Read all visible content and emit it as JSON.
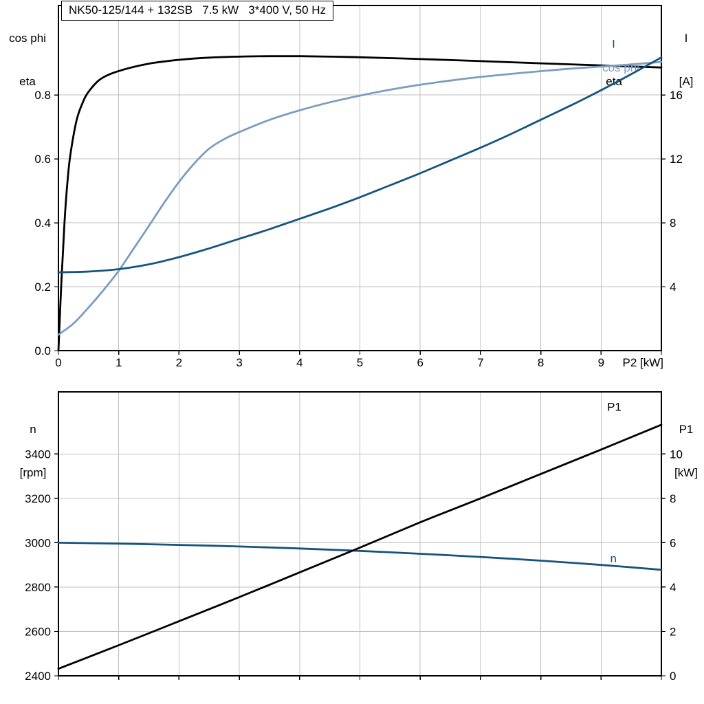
{
  "style": {
    "background": "#ffffff",
    "grid_color": "#bfbfbf",
    "axis_color": "#000000",
    "black_curve": "#000000",
    "dark_blue_curve": "#14557e",
    "light_blue_curve": "#7b9dbf"
  },
  "chart_data": [
    {
      "type": "line",
      "title": "NK50-125/144 + 132SB   7.5 kW   3*400 V, 50 Hz",
      "grid": true,
      "legend_position": "inline-right",
      "x_axis": {
        "min": 0,
        "max": 10,
        "label": "P2 [kW]",
        "grid_lines": [
          1,
          2,
          3,
          4,
          5,
          6,
          7,
          8,
          9
        ],
        "ticks": [
          {
            "v": 0,
            "label": "0"
          },
          {
            "v": 1,
            "label": "1"
          },
          {
            "v": 2,
            "label": "2"
          },
          {
            "v": 3,
            "label": "3"
          },
          {
            "v": 4,
            "label": "4"
          },
          {
            "v": 5,
            "label": "5"
          },
          {
            "v": 6,
            "label": "6"
          },
          {
            "v": 7,
            "label": "7"
          },
          {
            "v": 8,
            "label": "8"
          },
          {
            "v": 9,
            "label": "9"
          },
          {
            "v": 10,
            "label": ""
          }
        ]
      },
      "y_left": {
        "min": 0,
        "max": 1.08,
        "title_lines": [
          "cos phi",
          "eta"
        ],
        "ticks": [
          {
            "v": 0,
            "label": "0.0"
          },
          {
            "v": 0.2,
            "label": "0.2"
          },
          {
            "v": 0.4,
            "label": "0.4"
          },
          {
            "v": 0.6,
            "label": "0.6"
          },
          {
            "v": 0.8,
            "label": "0.8"
          }
        ]
      },
      "y_right": {
        "min": 0,
        "max": 21.6,
        "title_lines": [
          "I",
          "[A]"
        ],
        "ticks": [
          {
            "v": 4,
            "label": "4"
          },
          {
            "v": 8,
            "label": "8"
          },
          {
            "v": 12,
            "label": "12"
          },
          {
            "v": 16,
            "label": "16"
          }
        ]
      },
      "series": [
        {
          "name": "eta",
          "axis": "left",
          "color": "#000000",
          "width": 2.8,
          "label": {
            "text": "eta",
            "x": 9.08,
            "y": 0.8305
          },
          "points": [
            [
              0,
              0
            ],
            [
              0.05,
              0.22
            ],
            [
              0.1,
              0.4
            ],
            [
              0.15,
              0.53
            ],
            [
              0.2,
              0.615
            ],
            [
              0.3,
              0.72
            ],
            [
              0.4,
              0.775
            ],
            [
              0.5,
              0.81
            ],
            [
              0.7,
              0.85
            ],
            [
              1,
              0.875
            ],
            [
              1.5,
              0.898
            ],
            [
              2,
              0.91
            ],
            [
              2.5,
              0.917
            ],
            [
              3,
              0.92
            ],
            [
              3.5,
              0.9215
            ],
            [
              4,
              0.9215
            ],
            [
              4.5,
              0.92
            ],
            [
              5,
              0.918
            ],
            [
              6,
              0.9125
            ],
            [
              7,
              0.906
            ],
            [
              8,
              0.899
            ],
            [
              9,
              0.8925
            ],
            [
              10,
              0.886
            ]
          ]
        },
        {
          "name": "cos phi",
          "axis": "left",
          "color": "#7b9dbf",
          "width": 2.8,
          "label": {
            "text": "cos phi",
            "x": 9.02,
            "y": 0.8735
          },
          "points": [
            [
              0,
              0.05
            ],
            [
              0.25,
              0.085
            ],
            [
              0.5,
              0.135
            ],
            [
              0.75,
              0.19
            ],
            [
              1,
              0.25
            ],
            [
              1.25,
              0.32
            ],
            [
              1.5,
              0.39
            ],
            [
              1.75,
              0.462
            ],
            [
              2,
              0.528
            ],
            [
              2.25,
              0.585
            ],
            [
              2.5,
              0.632
            ],
            [
              2.75,
              0.662
            ],
            [
              3,
              0.684
            ],
            [
              3.5,
              0.722
            ],
            [
              4,
              0.752
            ],
            [
              4.5,
              0.777
            ],
            [
              5,
              0.798
            ],
            [
              5.5,
              0.8165
            ],
            [
              6,
              0.832
            ],
            [
              6.5,
              0.845
            ],
            [
              7,
              0.8565
            ],
            [
              7.5,
              0.866
            ],
            [
              8,
              0.8745
            ],
            [
              8.5,
              0.8825
            ],
            [
              9,
              0.889
            ],
            [
              9.5,
              0.8955
            ],
            [
              10,
              0.9035
            ]
          ]
        },
        {
          "name": "I",
          "axis": "right",
          "color": "#14557e",
          "width": 2.8,
          "label": {
            "text": "I",
            "x": 9.18,
            "y": 18.95
          },
          "points": [
            [
              0,
              4.9
            ],
            [
              0.5,
              4.95
            ],
            [
              1,
              5.1
            ],
            [
              1.5,
              5.4
            ],
            [
              2,
              5.85
            ],
            [
              2.5,
              6.4
            ],
            [
              3,
              7.0
            ],
            [
              3.5,
              7.6
            ],
            [
              4,
              8.25
            ],
            [
              4.5,
              8.9
            ],
            [
              5,
              9.6
            ],
            [
              5.5,
              10.35
            ],
            [
              6,
              11.1
            ],
            [
              6.5,
              11.9
            ],
            [
              7,
              12.7
            ],
            [
              7.5,
              13.55
            ],
            [
              8,
              14.45
            ],
            [
              8.5,
              15.35
            ],
            [
              9,
              16.3
            ],
            [
              9.5,
              17.3
            ],
            [
              10,
              18.35
            ]
          ]
        }
      ]
    },
    {
      "type": "line",
      "grid": true,
      "x_axis": {
        "min": 0,
        "max": 10,
        "label": "",
        "grid_lines": [
          1,
          2,
          3,
          4,
          5,
          6,
          7,
          8,
          9
        ],
        "ticks": [
          {
            "v": 0,
            "label": ""
          },
          {
            "v": 1,
            "label": ""
          },
          {
            "v": 2,
            "label": ""
          },
          {
            "v": 3,
            "label": ""
          },
          {
            "v": 4,
            "label": ""
          },
          {
            "v": 5,
            "label": ""
          },
          {
            "v": 6,
            "label": ""
          },
          {
            "v": 7,
            "label": ""
          },
          {
            "v": 8,
            "label": ""
          },
          {
            "v": 9,
            "label": ""
          },
          {
            "v": 10,
            "label": ""
          }
        ]
      },
      "y_left": {
        "min": 2400,
        "max": 3680,
        "title_lines": [
          "n",
          "[rpm]"
        ],
        "ticks": [
          {
            "v": 2400,
            "label": "2400"
          },
          {
            "v": 2600,
            "label": "2600"
          },
          {
            "v": 2800,
            "label": "2800"
          },
          {
            "v": 3000,
            "label": "3000"
          },
          {
            "v": 3200,
            "label": "3200"
          },
          {
            "v": 3400,
            "label": "3400"
          }
        ]
      },
      "y_right": {
        "min": 0,
        "max": 12.8,
        "title_lines": [
          "P1",
          "[kW]"
        ],
        "ticks": [
          {
            "v": 0,
            "label": "0"
          },
          {
            "v": 2,
            "label": "2"
          },
          {
            "v": 4,
            "label": "4"
          },
          {
            "v": 6,
            "label": "6"
          },
          {
            "v": 8,
            "label": "8"
          },
          {
            "v": 10,
            "label": "10"
          }
        ]
      },
      "series": [
        {
          "name": "n",
          "axis": "left",
          "color": "#14557e",
          "width": 2.8,
          "label": {
            "text": "n",
            "x": 9.15,
            "y": 2911
          },
          "points": [
            [
              0,
              3000
            ],
            [
              1,
              2996
            ],
            [
              2,
              2990
            ],
            [
              3,
              2983
            ],
            [
              4,
              2974
            ],
            [
              5,
              2963
            ],
            [
              6,
              2950
            ],
            [
              7,
              2936
            ],
            [
              8,
              2919
            ],
            [
              9,
              2900
            ],
            [
              10,
              2878
            ]
          ]
        },
        {
          "name": "P1",
          "axis": "right",
          "color": "#000000",
          "width": 2.8,
          "label": {
            "text": "P1",
            "x": 9.1,
            "y": 11.95
          },
          "points": [
            [
              0,
              0.32
            ],
            [
              1,
              1.38
            ],
            [
              2,
              2.46
            ],
            [
              3,
              3.55
            ],
            [
              4,
              4.66
            ],
            [
              5,
              5.78
            ],
            [
              6,
              6.92
            ],
            [
              7,
              8.0
            ],
            [
              8,
              9.1
            ],
            [
              9,
              10.2
            ],
            [
              10,
              11.32
            ]
          ]
        }
      ]
    }
  ]
}
